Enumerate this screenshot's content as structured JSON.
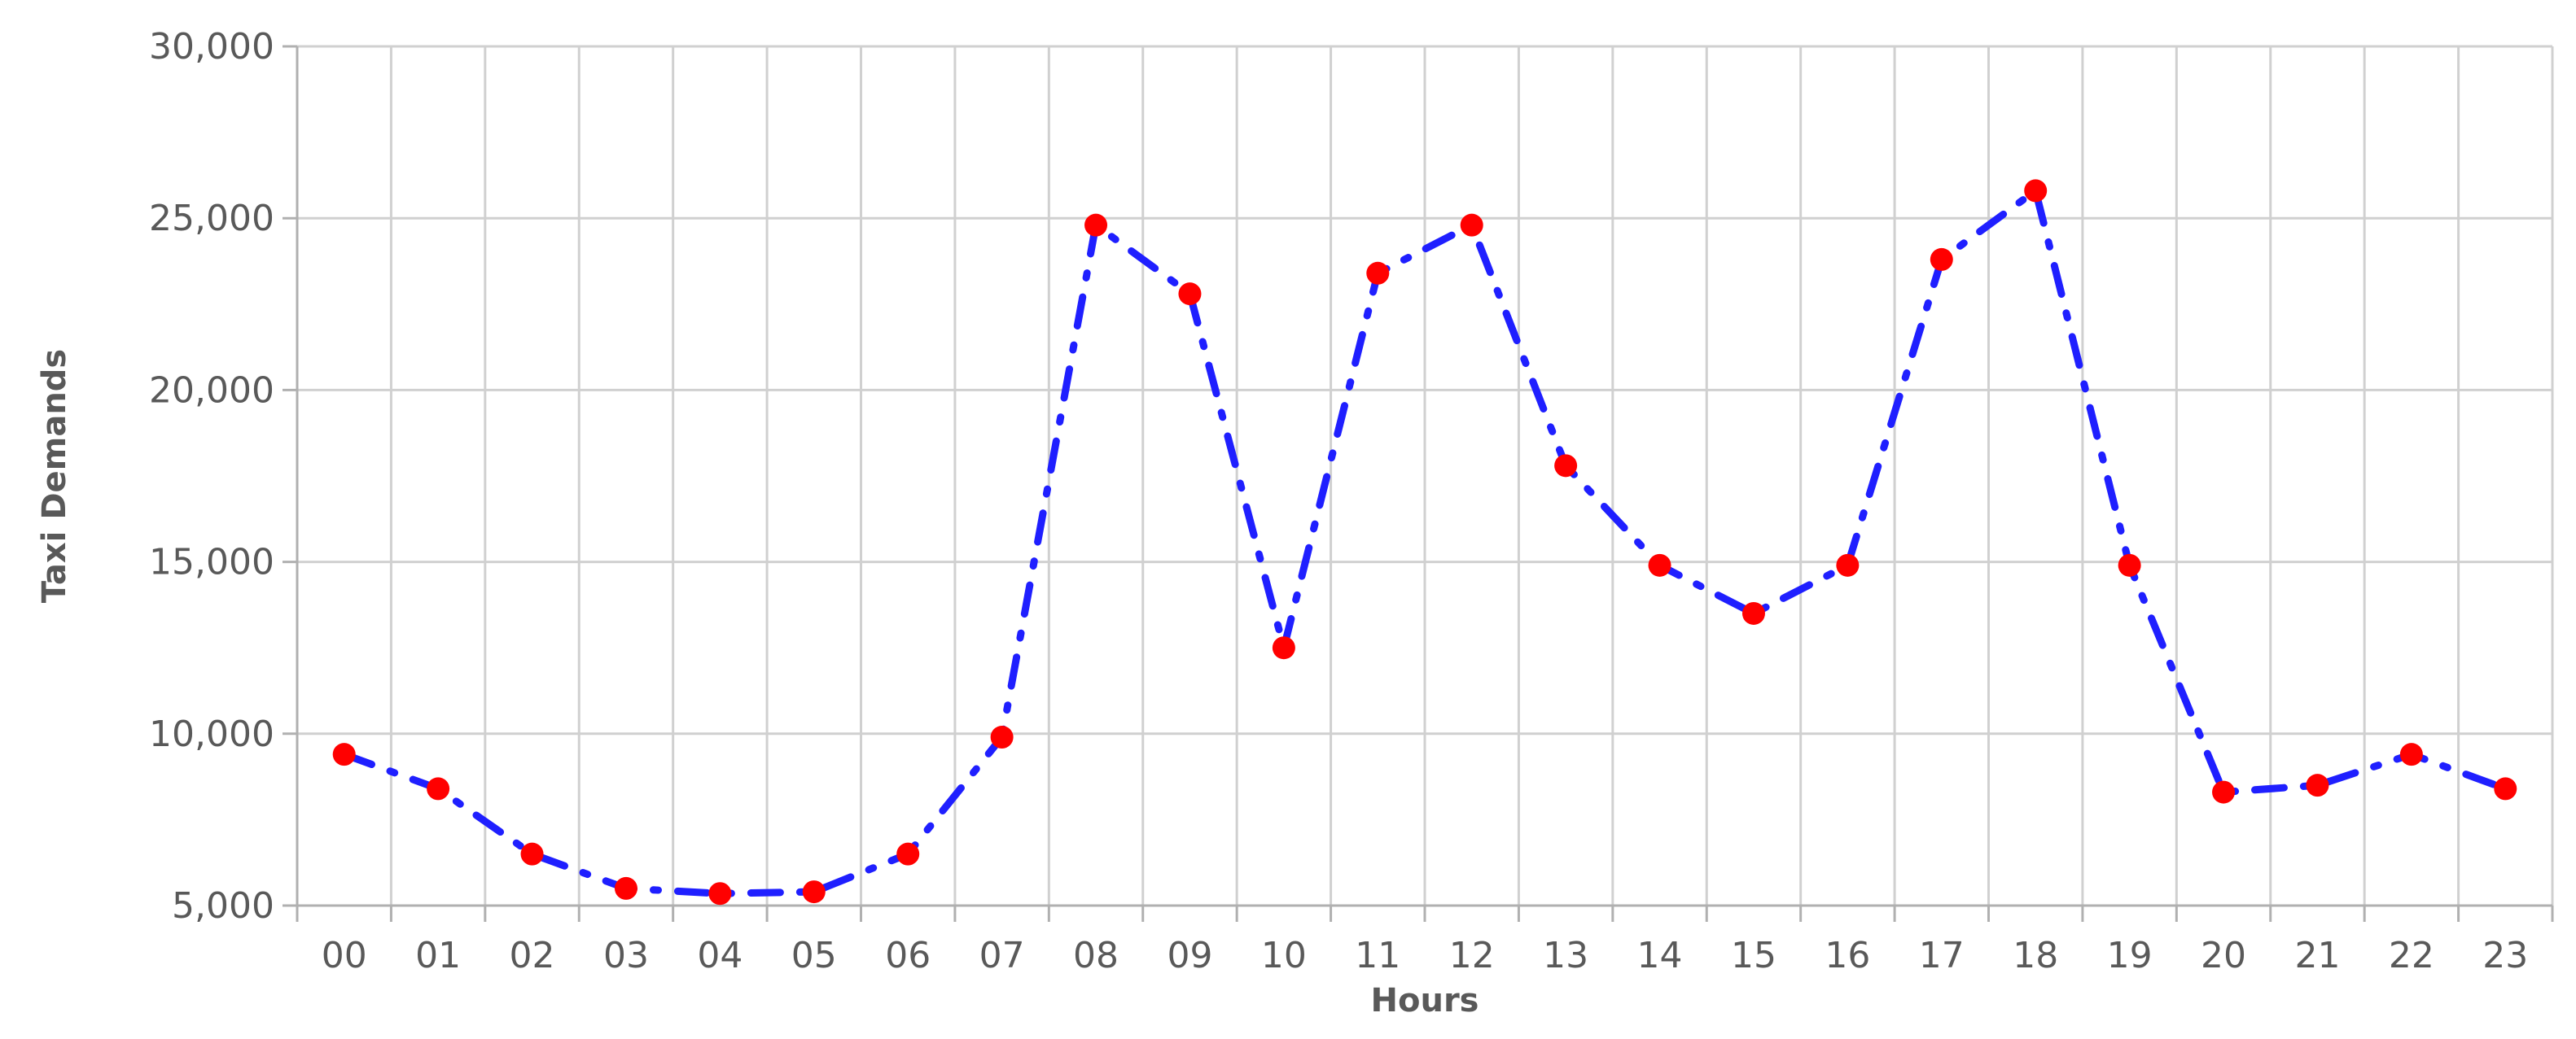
{
  "chart_data": {
    "type": "line",
    "title": "",
    "xlabel": "Hours",
    "ylabel": "Taxi Demands",
    "categories": [
      "00",
      "01",
      "02",
      "03",
      "04",
      "05",
      "06",
      "07",
      "08",
      "09",
      "10",
      "11",
      "12",
      "13",
      "14",
      "15",
      "16",
      "17",
      "18",
      "19",
      "20",
      "21",
      "22",
      "23"
    ],
    "y_ticks": [
      "5,000",
      "10,000",
      "15,000",
      "20,000",
      "25,000",
      "30,000"
    ],
    "ylim": [
      5000,
      30000
    ],
    "series": [
      {
        "values": [
          9400,
          8400,
          6500,
          5500,
          5350,
          5400,
          6500,
          9900,
          24800,
          22800,
          12500,
          23400,
          24800,
          17800,
          14900,
          13500,
          14900,
          23800,
          25800,
          14900,
          8300,
          8500,
          9400,
          8400
        ],
        "line_color": "#1f1fff",
        "marker_color": "#ff0000",
        "line_style": "dash-dot"
      }
    ],
    "grid": true,
    "legend": "none"
  }
}
